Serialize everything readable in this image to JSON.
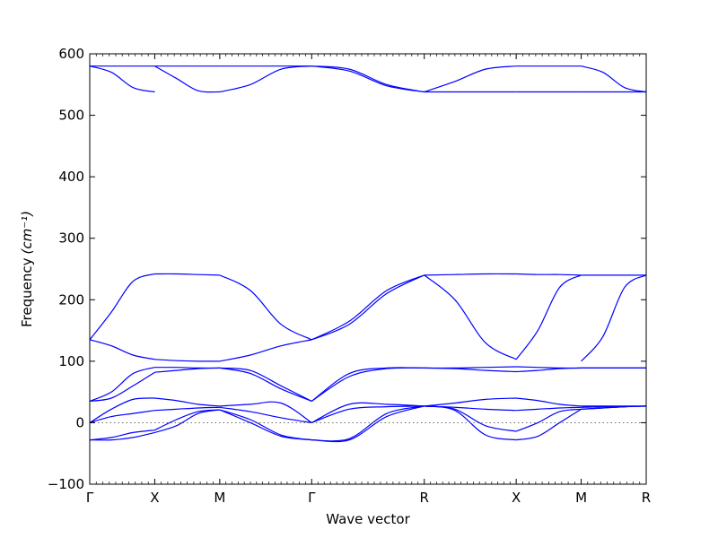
{
  "chart_data": {
    "type": "line",
    "title": "",
    "xlabel": "Wave vector",
    "ylabel": "Frequency",
    "ylabel_unit": "(cm⁻¹)",
    "ylim": [
      -100,
      600
    ],
    "yticks": [
      -100,
      0,
      100,
      200,
      300,
      400,
      500,
      600
    ],
    "ytick_labels": [
      "−100",
      "0",
      "100",
      "200",
      "300",
      "400",
      "500",
      "600"
    ],
    "x_points": [
      {
        "label": "Γ",
        "position": 0
      },
      {
        "label": "X",
        "position": 0.5
      },
      {
        "label": "M",
        "position": 1.0
      },
      {
        "label": "Γ",
        "position": 1.707
      },
      {
        "label": "R",
        "position": 2.573
      },
      {
        "label": "X",
        "position": 3.28
      },
      {
        "label": "M",
        "position": 3.78
      },
      {
        "label": "R",
        "position": 4.28
      }
    ],
    "grid": false,
    "zero_line": true,
    "line_color": "#0000ff",
    "segments": [
      {
        "from": "Γ",
        "to": "X",
        "bands": [
          [
            -28,
            -24,
            -16,
            -12
          ],
          [
            -28,
            -28,
            -24,
            -16
          ],
          [
            0,
            10,
            15,
            20
          ],
          [
            0,
            22,
            38,
            40
          ],
          [
            35,
            50,
            80,
            90
          ],
          [
            35,
            40,
            60,
            82
          ],
          [
            135,
            125,
            110,
            103
          ],
          [
            135,
            180,
            230,
            242
          ],
          [
            580,
            580,
            580,
            580
          ],
          [
            580,
            570,
            545,
            538
          ]
        ]
      },
      {
        "from": "X",
        "to": "M",
        "bands": [
          [
            -12,
            5,
            18,
            21
          ],
          [
            -16,
            -5,
            15,
            21
          ],
          [
            20,
            22,
            24,
            25
          ],
          [
            40,
            36,
            30,
            27
          ],
          [
            90,
            90,
            89,
            89
          ],
          [
            82,
            85,
            88,
            89
          ],
          [
            103,
            101,
            100,
            100
          ],
          [
            242,
            242,
            241,
            240
          ],
          [
            580,
            580,
            580,
            580
          ],
          [
            580,
            560,
            540,
            538
          ]
        ]
      },
      {
        "from": "M",
        "to": "Γ",
        "bands": [
          [
            21,
            5,
            -20,
            -28
          ],
          [
            21,
            0,
            -22,
            -28
          ],
          [
            25,
            18,
            8,
            0
          ],
          [
            27,
            30,
            32,
            0
          ],
          [
            89,
            85,
            60,
            35
          ],
          [
            89,
            80,
            55,
            35
          ],
          [
            100,
            110,
            125,
            135
          ],
          [
            240,
            215,
            160,
            135
          ],
          [
            580,
            580,
            580,
            580
          ],
          [
            538,
            550,
            575,
            580
          ]
        ]
      },
      {
        "from": "Γ",
        "to": "R",
        "bands": [
          [
            -28,
            -26,
            15,
            27
          ],
          [
            -28,
            -28,
            10,
            27
          ],
          [
            0,
            22,
            26,
            27
          ],
          [
            0,
            30,
            30,
            27
          ],
          [
            35,
            80,
            89,
            89
          ],
          [
            35,
            75,
            88,
            89
          ],
          [
            135,
            160,
            210,
            240
          ],
          [
            135,
            165,
            215,
            240
          ],
          [
            580,
            575,
            550,
            538
          ],
          [
            580,
            572,
            548,
            538
          ]
        ]
      },
      {
        "from": "R",
        "to": "X",
        "bands": [
          [
            27,
            22,
            -5,
            -14
          ],
          [
            27,
            20,
            -20,
            -28
          ],
          [
            27,
            25,
            22,
            20
          ],
          [
            27,
            32,
            38,
            40
          ],
          [
            89,
            89,
            90,
            91
          ],
          [
            89,
            88,
            85,
            83
          ],
          [
            240,
            200,
            130,
            103
          ],
          [
            240,
            241,
            242,
            242
          ],
          [
            538,
            538,
            538,
            538
          ],
          [
            538,
            555,
            575,
            580
          ]
        ]
      },
      {
        "from": "X",
        "to": "M",
        "bands": [
          [
            -14,
            0,
            18,
            22
          ],
          [
            -28,
            -22,
            0,
            22
          ],
          [
            20,
            22,
            24,
            25
          ],
          [
            40,
            36,
            30,
            27
          ],
          [
            91,
            90,
            89,
            89
          ],
          [
            83,
            85,
            88,
            89
          ],
          [
            103,
            150,
            220,
            240
          ],
          [
            242,
            241,
            241,
            240
          ],
          [
            538,
            538,
            538,
            538
          ],
          [
            580,
            580,
            580,
            580
          ]
        ]
      },
      {
        "from": "M",
        "to": "R",
        "bands": [
          [
            22,
            24,
            26,
            27
          ],
          [
            22,
            24,
            26,
            27
          ],
          [
            25,
            26,
            26,
            27
          ],
          [
            27,
            27,
            27,
            27
          ],
          [
            89,
            89,
            89,
            89
          ],
          [
            89,
            89,
            89,
            89
          ],
          [
            100,
            140,
            220,
            240
          ],
          [
            240,
            240,
            240,
            240
          ],
          [
            538,
            538,
            538,
            538
          ],
          [
            580,
            570,
            545,
            538
          ]
        ]
      }
    ]
  }
}
